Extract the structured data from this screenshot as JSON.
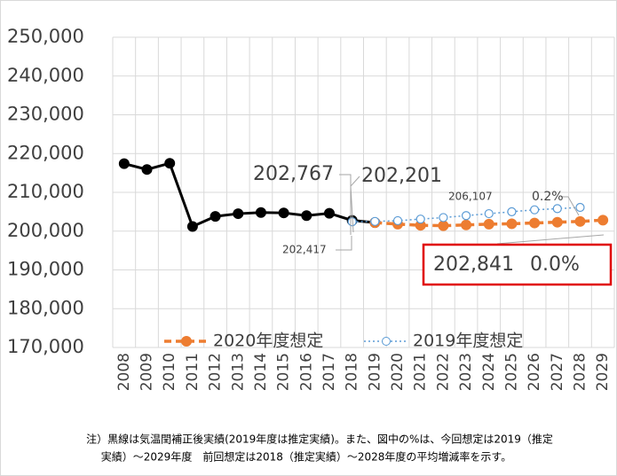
{
  "chart_data": {
    "type": "line",
    "categories": [
      "2008",
      "2009",
      "2010",
      "2011",
      "2012",
      "2013",
      "2014",
      "2015",
      "2016",
      "2017",
      "2018",
      "2019",
      "2020",
      "2021",
      "2022",
      "2023",
      "2024",
      "2025",
      "2026",
      "2027",
      "2028",
      "2029"
    ],
    "series": [
      {
        "color": "#000000",
        "values": [
          217400,
          215900,
          217500,
          201200,
          203800,
          204500,
          204800,
          204700,
          204000,
          204600,
          202767,
          202201,
          null,
          null,
          null,
          null,
          null,
          null,
          null,
          null,
          null,
          null
        ]
      },
      {
        "name": "2020年度想定",
        "color": "#ed7d31",
        "values": [
          null,
          null,
          null,
          null,
          null,
          null,
          null,
          null,
          null,
          null,
          null,
          202201,
          201800,
          201500,
          201400,
          201600,
          201800,
          201900,
          202100,
          202300,
          202500,
          202841
        ]
      },
      {
        "name": "2019年度想定",
        "color": "#5b9bd5",
        "values": [
          null,
          null,
          null,
          null,
          null,
          null,
          null,
          null,
          null,
          null,
          202417,
          202500,
          202700,
          203100,
          203500,
          204000,
          204500,
          205000,
          205500,
          205800,
          206107,
          null
        ]
      }
    ],
    "ylim": [
      170000,
      250000
    ],
    "yticks": [
      {
        "value": 170000,
        "label": "170,000"
      },
      {
        "value": 180000,
        "label": "180,000"
      },
      {
        "value": 190000,
        "label": "190,000"
      },
      {
        "value": 200000,
        "label": "200,000"
      },
      {
        "value": 210000,
        "label": "210,000"
      },
      {
        "value": 220000,
        "label": "220,000"
      },
      {
        "value": 230000,
        "label": "230,000"
      },
      {
        "value": 240000,
        "label": "240,000"
      },
      {
        "value": 250000,
        "label": "250,000"
      }
    ],
    "grid": true,
    "annotations": [
      "202,767",
      "202,201",
      "202,417",
      "206,107",
      "0.2%",
      "202,841",
      "0.0%"
    ],
    "footnote": [
      "注）黒線は気温閏補正後実績(2019年度は推定実績)。また、図中の%は、今回想定は2019（推定",
      "実績）～2029年度　前回想定は2018（推定実績）～2028年度の平均増減率を示す。"
    ]
  }
}
